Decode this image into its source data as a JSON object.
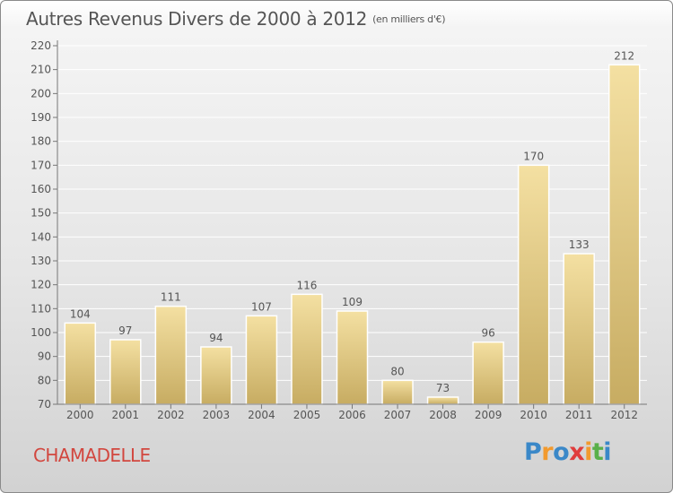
{
  "title": "Autres Revenus Divers de 2000 à 2012",
  "subtitle": "(en milliers d'€)",
  "place_name": "CHAMADELLE",
  "logo_text": "Proxiti",
  "colors": {
    "bar_light": "#f4e0a2",
    "bar_dark": "#c7ac62",
    "place_name": "#d2473f",
    "text": "#555555",
    "grid": "#ffffff"
  },
  "chart_data": {
    "type": "bar",
    "title": "Autres Revenus Divers de 2000 à 2012",
    "subtitle": "(en milliers d'€)",
    "xlabel": "",
    "ylabel": "",
    "categories": [
      "2000",
      "2001",
      "2002",
      "2003",
      "2004",
      "2005",
      "2006",
      "2007",
      "2008",
      "2009",
      "2010",
      "2011",
      "2012"
    ],
    "values": [
      104,
      97,
      111,
      94,
      107,
      116,
      109,
      80,
      73,
      96,
      170,
      133,
      212
    ],
    "ylim": [
      70,
      220
    ],
    "yticks": [
      70,
      80,
      90,
      100,
      110,
      120,
      130,
      140,
      150,
      160,
      170,
      180,
      190,
      200,
      210,
      220
    ],
    "grid": true,
    "data_labels": true
  }
}
